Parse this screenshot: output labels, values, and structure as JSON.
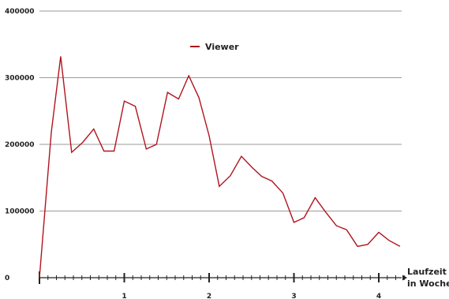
{
  "chart_data": {
    "type": "line",
    "title": "",
    "xlabel_line1": "Laufzeit",
    "xlabel_line2": "in Wochen",
    "ylabel": "",
    "xlim": [
      0,
      4.25
    ],
    "ylim": [
      0,
      400000
    ],
    "y_ticks": [
      0,
      100000,
      200000,
      300000,
      400000
    ],
    "y_tick_labels": [
      "0",
      "100000",
      "200000",
      "300000",
      "400000"
    ],
    "x_ticks": [
      1,
      2,
      3,
      4
    ],
    "x_tick_labels": [
      "1",
      "2",
      "3",
      "4"
    ],
    "x_minor_step": 0.1,
    "grid": "horizontal",
    "legend_position": "top-center",
    "series": [
      {
        "name": "Viewer",
        "color": "#b0141e",
        "x": [
          0,
          0.14,
          0.25,
          0.38,
          0.51,
          0.64,
          0.76,
          0.88,
          1.0,
          1.13,
          1.26,
          1.38,
          1.51,
          1.64,
          1.76,
          1.88,
          2.0,
          2.12,
          2.25,
          2.38,
          2.51,
          2.62,
          2.74,
          2.87,
          3.0,
          3.12,
          3.25,
          3.37,
          3.5,
          3.62,
          3.75,
          3.87,
          4.0,
          4.12,
          4.25
        ],
        "values": [
          0,
          218000,
          332000,
          188000,
          203000,
          223000,
          190000,
          190000,
          265000,
          257000,
          193000,
          200000,
          278000,
          268000,
          303000,
          270000,
          213000,
          137000,
          153000,
          182000,
          165000,
          152000,
          145000,
          127000,
          83000,
          90000,
          120000,
          99000,
          78000,
          72000,
          47000,
          50000,
          68000,
          56000,
          47000
        ]
      }
    ]
  }
}
